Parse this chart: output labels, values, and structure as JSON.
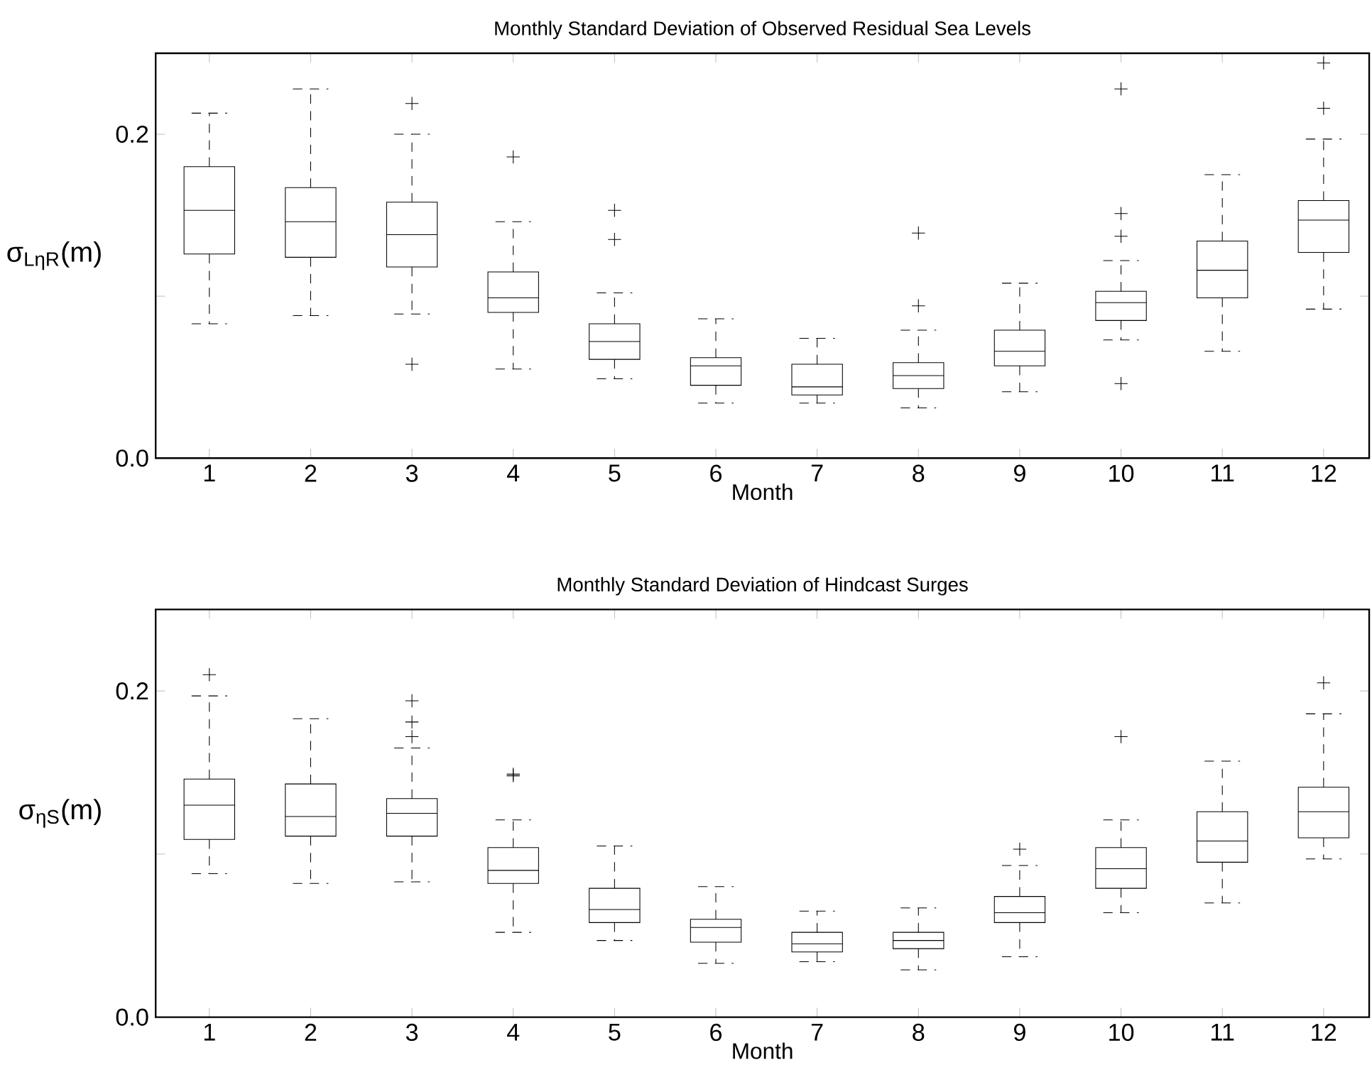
{
  "chart_data": [
    {
      "type": "box",
      "title": "Monthly Standard Deviation of Observed Residual Sea Levels",
      "xlabel": "Month",
      "ylabel": "σ$_{LηR}$(m)",
      "categories": [
        "1",
        "2",
        "3",
        "4",
        "5",
        "6",
        "7",
        "8",
        "9",
        "10",
        "11",
        "12"
      ],
      "ylim": [
        0,
        0.25
      ],
      "yticks": [
        {
          "value": 0,
          "label": "0.0"
        },
        {
          "value": 0.1,
          "label": null
        },
        {
          "value": 0.2,
          "label": "0.2"
        }
      ],
      "boxes": [
        {
          "low": 0.083,
          "q1": 0.126,
          "median": 0.153,
          "q3": 0.18,
          "high": 0.213
        },
        {
          "low": 0.088,
          "q1": 0.124,
          "median": 0.146,
          "q3": 0.167,
          "high": 0.228
        },
        {
          "low": 0.089,
          "q1": 0.118,
          "median": 0.138,
          "q3": 0.158,
          "high": 0.2,
          "outliers": [
            0.219,
            0.058
          ]
        },
        {
          "low": 0.055,
          "q1": 0.09,
          "median": 0.099,
          "q3": 0.115,
          "high": 0.146,
          "outliers": [
            0.186
          ]
        },
        {
          "low": 0.049,
          "q1": 0.061,
          "median": 0.072,
          "q3": 0.083,
          "high": 0.102,
          "outliers": [
            0.153,
            0.135
          ]
        },
        {
          "low": 0.034,
          "q1": 0.045,
          "median": 0.057,
          "q3": 0.062,
          "high": 0.086
        },
        {
          "low": 0.034,
          "q1": 0.039,
          "median": 0.044,
          "q3": 0.058,
          "high": 0.074
        },
        {
          "low": 0.031,
          "q1": 0.043,
          "median": 0.051,
          "q3": 0.059,
          "high": 0.079,
          "outliers": [
            0.139,
            0.094
          ]
        },
        {
          "low": 0.041,
          "q1": 0.057,
          "median": 0.066,
          "q3": 0.079,
          "high": 0.108
        },
        {
          "low": 0.073,
          "q1": 0.085,
          "median": 0.096,
          "q3": 0.103,
          "high": 0.122,
          "outliers": [
            0.228,
            0.151,
            0.137,
            0.046
          ]
        },
        {
          "low": 0.066,
          "q1": 0.099,
          "median": 0.116,
          "q3": 0.134,
          "high": 0.175
        },
        {
          "low": 0.092,
          "q1": 0.127,
          "median": 0.147,
          "q3": 0.159,
          "high": 0.197,
          "outliers": [
            0.244,
            0.216
          ]
        }
      ]
    },
    {
      "type": "box",
      "title": "Monthly Standard Deviation of Hindcast Surges",
      "xlabel": "Month",
      "ylabel": "σ$_{ηS}$(m)",
      "categories": [
        "1",
        "2",
        "3",
        "4",
        "5",
        "6",
        "7",
        "8",
        "9",
        "10",
        "11",
        "12"
      ],
      "ylim": [
        0,
        0.25
      ],
      "yticks": [
        {
          "value": 0,
          "label": "0.0"
        },
        {
          "value": 0.1,
          "label": null
        },
        {
          "value": 0.2,
          "label": "0.2"
        }
      ],
      "boxes": [
        {
          "low": 0.088,
          "q1": 0.109,
          "median": 0.13,
          "q3": 0.146,
          "high": 0.197,
          "outliers": [
            0.21
          ]
        },
        {
          "low": 0.082,
          "q1": 0.111,
          "median": 0.123,
          "q3": 0.143,
          "high": 0.183
        },
        {
          "low": 0.083,
          "q1": 0.111,
          "median": 0.125,
          "q3": 0.134,
          "high": 0.165,
          "outliers": [
            0.194,
            0.181,
            0.172
          ]
        },
        {
          "low": 0.052,
          "q1": 0.082,
          "median": 0.09,
          "q3": 0.104,
          "high": 0.121,
          "outliers": [
            0.149,
            0.148
          ]
        },
        {
          "low": 0.047,
          "q1": 0.058,
          "median": 0.066,
          "q3": 0.079,
          "high": 0.105
        },
        {
          "low": 0.033,
          "q1": 0.046,
          "median": 0.055,
          "q3": 0.06,
          "high": 0.08
        },
        {
          "low": 0.034,
          "q1": 0.04,
          "median": 0.045,
          "q3": 0.052,
          "high": 0.065
        },
        {
          "low": 0.029,
          "q1": 0.042,
          "median": 0.047,
          "q3": 0.052,
          "high": 0.067
        },
        {
          "low": 0.037,
          "q1": 0.058,
          "median": 0.064,
          "q3": 0.074,
          "high": 0.093,
          "outliers": [
            0.103
          ]
        },
        {
          "low": 0.064,
          "q1": 0.079,
          "median": 0.091,
          "q3": 0.104,
          "high": 0.121,
          "outliers": [
            0.172
          ]
        },
        {
          "low": 0.07,
          "q1": 0.095,
          "median": 0.108,
          "q3": 0.126,
          "high": 0.157
        },
        {
          "low": 0.097,
          "q1": 0.11,
          "median": 0.126,
          "q3": 0.141,
          "high": 0.186,
          "outliers": [
            0.205
          ]
        }
      ]
    }
  ]
}
